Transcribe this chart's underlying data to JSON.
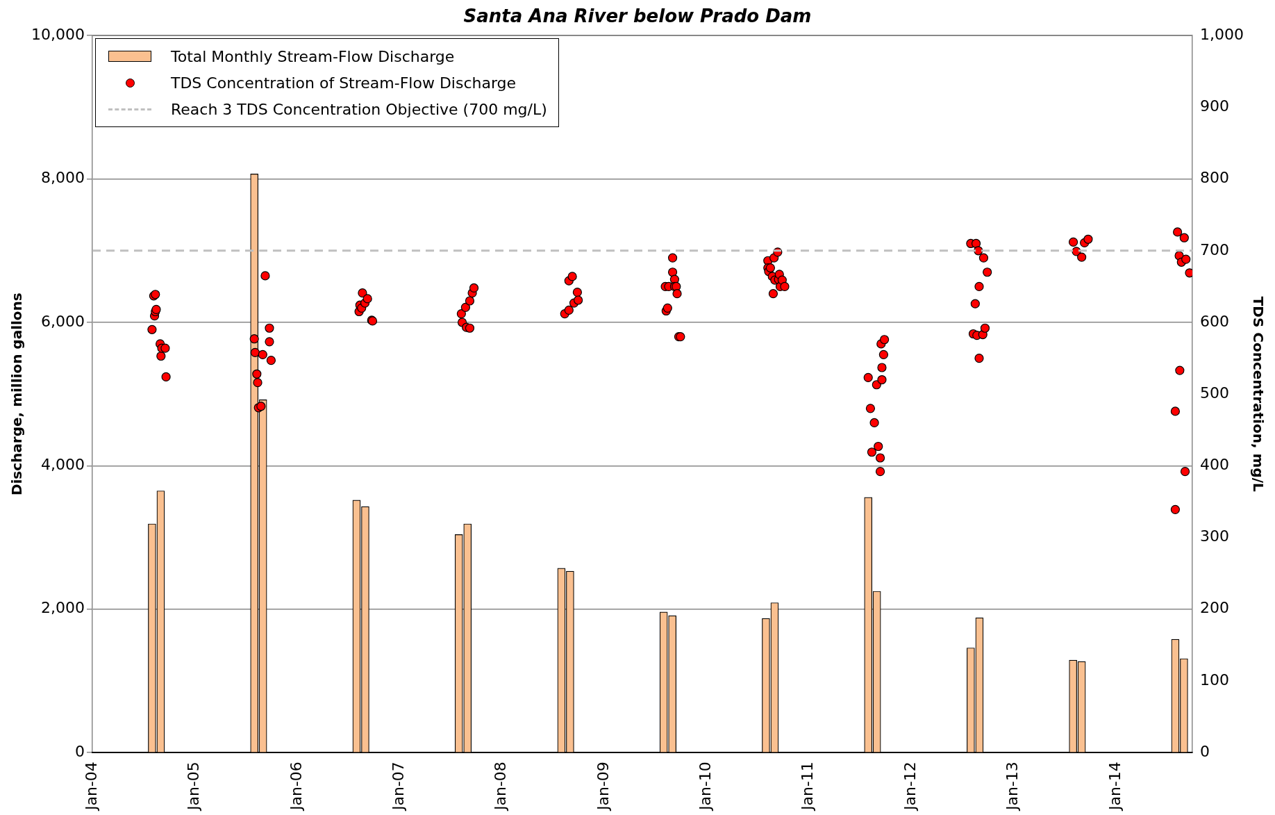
{
  "chart_data": {
    "type": "bar",
    "title": "Santa Ana River below Prado Dam",
    "ylabel": "Discharge, million gallons",
    "y2label": "TDS Concentration, mg/L",
    "xlim": [
      "2004-01",
      "2014-10"
    ],
    "xticks": [
      {
        "value": "2004-01",
        "label": "Jan-04"
      },
      {
        "value": "2005-01",
        "label": "Jan-05"
      },
      {
        "value": "2006-01",
        "label": "Jan-06"
      },
      {
        "value": "2007-01",
        "label": "Jan-07"
      },
      {
        "value": "2008-01",
        "label": "Jan-08"
      },
      {
        "value": "2009-01",
        "label": "Jan-09"
      },
      {
        "value": "2010-01",
        "label": "Jan-10"
      },
      {
        "value": "2011-01",
        "label": "Jan-11"
      },
      {
        "value": "2012-01",
        "label": "Jan-12"
      },
      {
        "value": "2013-01",
        "label": "Jan-13"
      },
      {
        "value": "2014-01",
        "label": "Jan-14"
      }
    ],
    "ylim": [
      0,
      10000
    ],
    "yticks": [
      0,
      {
        "value": 2000,
        "label": "2,000"
      },
      {
        "value": 4000,
        "label": "4,000"
      },
      {
        "value": 6000,
        "label": "6,000"
      },
      {
        "value": 8000,
        "label": "8,000"
      },
      {
        "value": 10000,
        "label": "10,000"
      }
    ],
    "y2lim": [
      0,
      1000
    ],
    "y2ticks": [
      0,
      100,
      200,
      300,
      400,
      500,
      600,
      700,
      800,
      900,
      {
        "value": 1000,
        "label": "1,000"
      }
    ],
    "grid": "y",
    "legend": "top left",
    "series": [
      {
        "name": "Total Monthly Stream-Flow Discharge",
        "color": "#fac090",
        "x": [
          "2004-08",
          "2004-09",
          "2005-08",
          "2005-09",
          "2006-08",
          "2006-09",
          "2007-08",
          "2007-09",
          "2008-08",
          "2008-09",
          "2009-08",
          "2009-09",
          "2010-08",
          "2010-09",
          "2011-08",
          "2011-09",
          "2012-08",
          "2012-09",
          "2013-08",
          "2013-09",
          "2014-08",
          "2014-09"
        ],
        "values": [
          3190,
          3650,
          8070,
          4920,
          3520,
          3430,
          3040,
          3190,
          2570,
          2530,
          1960,
          1910,
          1870,
          2090,
          3560,
          2250,
          1460,
          1880,
          1290,
          1270,
          1580,
          1310
        ]
      },
      {
        "type": "scatter",
        "name": "TDS Concentration of Stream-Flow Discharge",
        "color": "#ff0000",
        "axis": "y2",
        "marker": "circle",
        "x": [
          "2004-08-01",
          "2004-08-07",
          "2004-08-13",
          "2004-08-10",
          "2004-08-13",
          "2004-08-16",
          "2004-08-30",
          "2004-09-02",
          "2004-09-05",
          "2004-09-17",
          "2004-09-20",
          "2005-08-01",
          "2005-08-04",
          "2005-08-10",
          "2005-08-13",
          "2005-08-16",
          "2005-08-25",
          "2005-08-31",
          "2005-09-09",
          "2005-09-24",
          "2005-09-24",
          "2005-09-30",
          "2006-08-10",
          "2006-08-13",
          "2006-08-19",
          "2006-08-22",
          "2006-08-31",
          "2006-09-09",
          "2006-09-24",
          "2006-09-27",
          "2007-08-10",
          "2007-08-13",
          "2007-08-25",
          "2007-08-28",
          "2007-09-09",
          "2007-09-09",
          "2007-09-18",
          "2007-09-24",
          "2008-08-13",
          "2008-08-28",
          "2008-08-28",
          "2008-09-09",
          "2008-09-15",
          "2008-09-27",
          "2008-09-30",
          "2009-08-07",
          "2009-08-19",
          "2009-09-02",
          "2009-09-02",
          "2009-09-09",
          "2009-09-09",
          "2009-09-15",
          "2009-09-18",
          "2009-08-10",
          "2009-08-15",
          "2009-09-24",
          "2009-09-30",
          "2010-08-08",
          "2010-08-08",
          "2010-08-11",
          "2010-08-17",
          "2010-08-24",
          "2010-08-27",
          "2010-08-30",
          "2010-09-02",
          "2010-09-12",
          "2010-09-15",
          "2010-09-18",
          "2010-09-21",
          "2010-09-28",
          "2010-10-07",
          "2011-08-01",
          "2011-08-09",
          "2011-08-14",
          "2011-08-23",
          "2011-08-31",
          "2011-09-06",
          "2011-09-13",
          "2011-09-13",
          "2011-09-19",
          "2011-09-19",
          "2011-09-25",
          "2011-09-16",
          "2011-09-28",
          "2012-08-01",
          "2012-08-20",
          "2012-08-28",
          "2012-09-16",
          "2012-09-29",
          "2012-08-31",
          "2012-08-17",
          "2012-08-10",
          "2012-08-23",
          "2012-09-13",
          "2012-09-21",
          "2012-08-31",
          "2013-08-02",
          "2013-08-13",
          "2013-09-01",
          "2013-09-11",
          "2013-09-24",
          "2014-08-09",
          "2014-09-02",
          "2014-08-15",
          "2014-08-23",
          "2014-09-08",
          "2014-09-21",
          "2014-08-17",
          "2014-08-01",
          "2014-09-05",
          "2014-08-01"
        ],
        "values": [
          590,
          637,
          639,
          609,
          615,
          618,
          570,
          553,
          564,
          564,
          524,
          577,
          558,
          528,
          516,
          481,
          483,
          555,
          665,
          592,
          573,
          547,
          615,
          624,
          620,
          641,
          627,
          633,
          603,
          602,
          612,
          600,
          621,
          593,
          592,
          630,
          641,
          648,
          612,
          617,
          658,
          664,
          627,
          642,
          631,
          650,
          650,
          690,
          670,
          660,
          650,
          650,
          640,
          616,
          620,
          580,
          580,
          686,
          676,
          671,
          676,
          664,
          640,
          690,
          659,
          698,
          660,
          667,
          650,
          659,
          650,
          523,
          480,
          419,
          460,
          513,
          427,
          411,
          392,
          537,
          520,
          555,
          570,
          576,
          710,
          710,
          700,
          690,
          670,
          650,
          626,
          584,
          582,
          583,
          592,
          550,
          712,
          699,
          691,
          711,
          716,
          726,
          718,
          693,
          684,
          688,
          669,
          533,
          476,
          392,
          339
        ]
      }
    ],
    "ref_lines": [
      {
        "axis": "y2",
        "value": 700,
        "label": "Reach 3 TDS Concentration Objective (700 mg/L)",
        "color": "#c0c0c0",
        "line_style": "dashed"
      }
    ]
  }
}
